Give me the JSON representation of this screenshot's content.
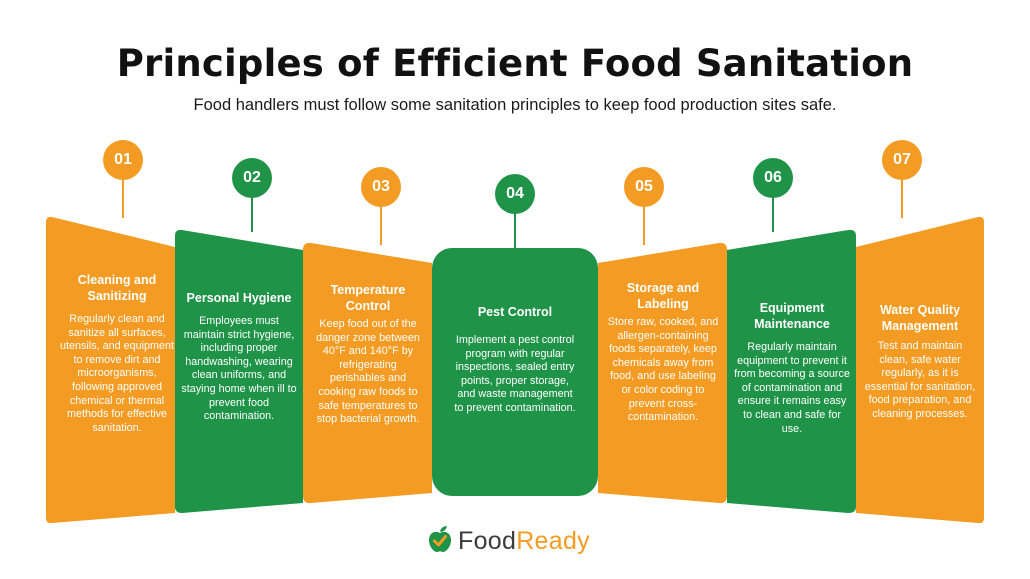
{
  "title": "Principles of Efficient Food Sanitation",
  "subtitle": "Food handlers must follow some sanitation principles to keep food production sites safe.",
  "colors": {
    "orange": "#F39B22",
    "green": "#1F9448"
  },
  "principles": [
    {
      "number": "01",
      "title": "Cleaning and Sanitizing",
      "color": "orange",
      "body": "Regularly clean and sanitize all surfaces, utensils, and equipment to remove dirt and microorganisms, following approved chemical or thermal methods for effective sanitation."
    },
    {
      "number": "02",
      "title": "Personal Hygiene",
      "color": "green",
      "body": "Employees must maintain strict hygiene, including proper handwashing, wearing clean uniforms, and staying home when ill to prevent food contamination."
    },
    {
      "number": "03",
      "title": "Temperature Control",
      "color": "orange",
      "body": "Keep food out of the danger zone between 40°F and 140°F by refrigerating perishables and cooking raw foods to safe temperatures to stop bacterial growth."
    },
    {
      "number": "04",
      "title": "Pest Control",
      "color": "green",
      "body": "Implement a pest control program with regular inspections, sealed entry points, proper storage, and waste management to prevent contamination."
    },
    {
      "number": "05",
      "title": "Storage and Labeling",
      "color": "orange",
      "body": "Store raw, cooked, and allergen-containing foods separately, keep chemicals away from food, and use labeling or color coding to prevent cross-contamination."
    },
    {
      "number": "06",
      "title": "Equipment Maintenance",
      "color": "green",
      "body": "Regularly maintain equipment to prevent it from becoming a source of contamination and ensure it remains easy to clean and safe for use."
    },
    {
      "number": "07",
      "title": "Water Quality Management",
      "color": "orange",
      "body": "Test and maintain clean, safe water regularly, as it is essential for sanitation, food preparation, and cleaning processes."
    }
  ],
  "logo": {
    "part1": "Food",
    "part2": "Ready",
    "icon": "apple-check-icon"
  }
}
